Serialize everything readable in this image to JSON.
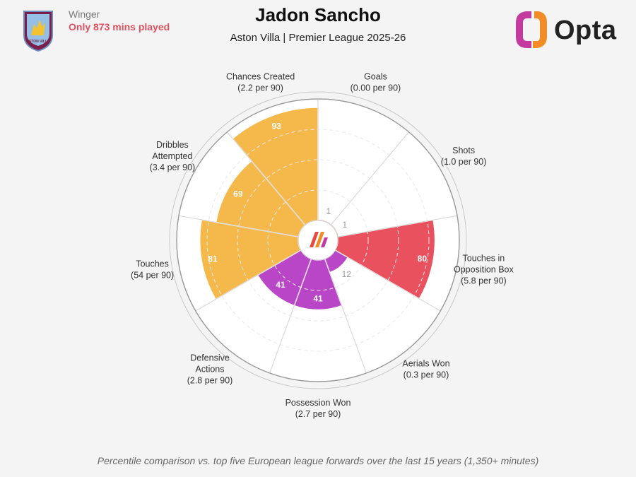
{
  "header": {
    "role": "Winger",
    "minutes_note": "Only 873 mins played",
    "title": "Jadon Sancho",
    "subtitle": "Aston Villa | Premier League 2025-26",
    "brand": "Opta",
    "crest_text": "ASTON VILLA"
  },
  "footer": {
    "note": "Percentile comparison vs. top five European league forwards over the last 15 years (1,350+ minutes)"
  },
  "colors": {
    "attacking": "#e8515d",
    "possession": "#f5b84b",
    "defending": "#b946c6",
    "grid": "#cccccc",
    "background": "#f4f4f4"
  },
  "chart_data": {
    "type": "polar-bar",
    "scale": [
      0,
      100
    ],
    "metrics": [
      {
        "name": "Goals",
        "rate": "(0.00 per 90)",
        "percentile": 1,
        "group": "attacking"
      },
      {
        "name": "Shots",
        "rate": "(1.0 per 90)",
        "percentile": 1,
        "group": "attacking"
      },
      {
        "name": "Touches in Opposition Box",
        "rate": "(5.8 per 90)",
        "percentile": 80,
        "group": "attacking"
      },
      {
        "name": "Aerials Won",
        "rate": "(0.3 per 90)",
        "percentile": 12,
        "group": "defending"
      },
      {
        "name": "Possession Won",
        "rate": "(2.7 per 90)",
        "percentile": 41,
        "group": "defending"
      },
      {
        "name": "Defensive Actions",
        "rate": "(2.8 per 90)",
        "percentile": 41,
        "group": "defending"
      },
      {
        "name": "Touches",
        "rate": "(54 per 90)",
        "percentile": 81,
        "group": "possession"
      },
      {
        "name": "Dribbles Attempted",
        "rate": "(3.4 per 90)",
        "percentile": 69,
        "group": "possession"
      },
      {
        "name": "Chances Created",
        "rate": "(2.2 per 90)",
        "percentile": 93,
        "group": "possession"
      }
    ]
  }
}
